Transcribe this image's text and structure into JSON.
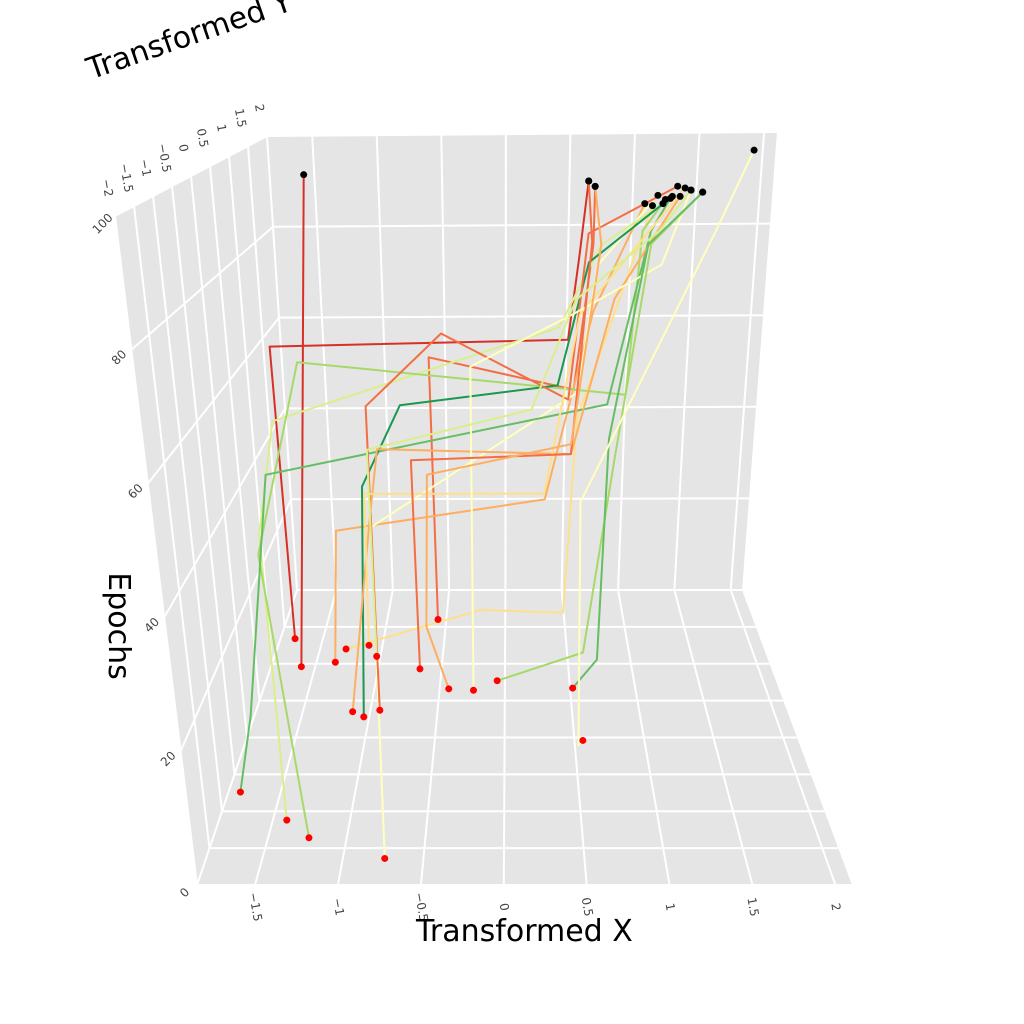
{
  "chart_data": {
    "type": "line3d",
    "xlabel": "Transformed X",
    "ylabel": "Transformed Y",
    "zlabel": "Epochs",
    "xlim": [
      -1.85,
      2.1
    ],
    "ylim": [
      -2,
      2
    ],
    "zlim": [
      0,
      100
    ],
    "x_ticks": [
      "−1.5",
      "−1",
      "−0.5",
      "0",
      "0.5",
      "1",
      "1.5",
      "2"
    ],
    "x_tick_values": [
      -1.5,
      -1,
      -0.5,
      0,
      0.5,
      1,
      1.5,
      2
    ],
    "y_ticks": [
      "−2",
      "−1.5",
      "−1",
      "−0.5",
      "0",
      "0.5",
      "1",
      "1.5",
      "2"
    ],
    "y_tick_values": [
      -2,
      -1.5,
      -1,
      -0.5,
      0,
      0.5,
      1,
      1.5,
      2
    ],
    "z_ticks": [
      "0",
      "20",
      "40",
      "60",
      "80",
      "100"
    ],
    "z_tick_values": [
      0,
      20,
      40,
      60,
      80,
      100
    ],
    "start_marker_color": "#ff0000",
    "end_marker_color": "#000000",
    "wall_color": "#e5e5e5",
    "series": [
      {
        "color": "#d73027",
        "points": [
          [
            -1.73,
            1.34,
            0
          ],
          [
            -1.75,
            1.3,
            60
          ],
          [
            0.45,
            1.2,
            62
          ],
          [
            0.5,
            1.0,
            80
          ],
          [
            0.45,
            -0.3,
            100
          ]
        ]
      },
      {
        "color": "#d73027",
        "points": [
          [
            -1.61,
            0.96,
            0
          ],
          [
            -1.2,
            0.05,
            100
          ]
        ]
      },
      {
        "color": "#f46d43",
        "points": [
          [
            -0.57,
            1.6,
            0
          ],
          [
            -0.6,
            1.6,
            55
          ],
          [
            0.5,
            1.2,
            52
          ],
          [
            0.55,
            0.5,
            85
          ],
          [
            0.47,
            -0.56,
            100
          ]
        ]
      },
      {
        "color": "#fdae61",
        "points": [
          [
            -1.35,
            1.02,
            0
          ],
          [
            -1.3,
            1.1,
            25
          ],
          [
            0.3,
            1.2,
            30
          ],
          [
            0.6,
            0.9,
            70
          ],
          [
            0.67,
            -1.4,
            100
          ]
        ]
      },
      {
        "color": "#fee08b",
        "points": [
          [
            -1.29,
            1.2,
            0
          ],
          [
            -0.2,
            1.4,
            5
          ],
          [
            0.45,
            1.0,
            10
          ],
          [
            0.5,
            0.8,
            50
          ],
          [
            0.7,
            -1.5,
            100
          ]
        ]
      },
      {
        "color": "#ffffbf",
        "points": [
          [
            -0.74,
            -1.64,
            0
          ],
          [
            -0.75,
            -1.5,
            50
          ],
          [
            0.5,
            0.8,
            55
          ],
          [
            0.6,
            0.7,
            80
          ],
          [
            0.77,
            -1.0,
            100
          ]
        ]
      },
      {
        "color": "#d9ef8b",
        "points": [
          [
            -1.41,
            -1.12,
            0
          ],
          [
            -1.45,
            -1.0,
            45
          ],
          [
            -1.4,
            -0.5,
            60
          ],
          [
            0.4,
            1.5,
            62
          ],
          [
            0.6,
            0.5,
            85
          ],
          [
            0.76,
            -1.4,
            100
          ]
        ]
      },
      {
        "color": "#a6d96a",
        "points": [
          [
            -1.24,
            -1.36,
            0
          ],
          [
            -1.5,
            -0.8,
            40
          ],
          [
            -1.6,
            1.5,
            55
          ],
          [
            0.9,
            1.3,
            50
          ],
          [
            0.8,
            0.0,
            90
          ],
          [
            0.79,
            -1.2,
            100
          ]
        ]
      },
      {
        "color": "#66bd63",
        "points": [
          [
            -1.77,
            -0.74,
            0
          ],
          [
            -1.7,
            -0.5,
            10
          ],
          [
            -1.6,
            0.2,
            45
          ],
          [
            0.8,
            1.6,
            45
          ],
          [
            0.85,
            0.0,
            90
          ],
          [
            0.82,
            -1.15,
            100
          ]
        ]
      },
      {
        "color": "#1a9850",
        "points": [
          [
            -1.04,
            0.28,
            0
          ],
          [
            -1.0,
            0.5,
            40
          ],
          [
            -0.8,
            1.3,
            48
          ],
          [
            0.4,
            1.5,
            50
          ],
          [
            0.55,
            0.8,
            80
          ],
          [
            0.84,
            -1.05,
            100
          ]
        ]
      },
      {
        "color": "#f46d43",
        "points": [
          [
            -0.93,
            0.37,
            0
          ],
          [
            -0.95,
            0.5,
            55
          ],
          [
            -0.5,
            1.6,
            60
          ],
          [
            0.5,
            1.7,
            45
          ],
          [
            0.55,
            0.9,
            85
          ],
          [
            0.92,
            -0.56,
            100
          ]
        ]
      },
      {
        "color": "#fdae61",
        "points": [
          [
            -1.13,
            0.35,
            0
          ],
          [
            -1.0,
            0.8,
            30
          ],
          [
            -1.0,
            1.4,
            38
          ],
          [
            0.5,
            1.3,
            38
          ],
          [
            0.7,
            0.5,
            75
          ],
          [
            0.88,
            -1.05,
            100
          ]
        ]
      },
      {
        "color": "#fee08b",
        "points": [
          [
            -1.11,
            1.25,
            0
          ],
          [
            -1.1,
            1.3,
            30
          ],
          [
            0.3,
            1.3,
            30
          ],
          [
            0.5,
            0.8,
            70
          ],
          [
            0.95,
            -0.65,
            100
          ]
        ]
      },
      {
        "color": "#ffffbf",
        "points": [
          [
            -0.24,
            0.64,
            0
          ],
          [
            -0.25,
            0.8,
            60
          ],
          [
            0.45,
            0.8,
            70
          ],
          [
            0.9,
            -0.2,
            85
          ],
          [
            0.97,
            -0.75,
            100
          ]
        ]
      },
      {
        "color": "#a6d96a",
        "points": [
          [
            -0.06,
            0.77,
            0
          ],
          [
            0.6,
            0.8,
            5
          ],
          [
            0.8,
            1.0,
            40
          ],
          [
            0.8,
            -0.5,
            90
          ],
          [
            1.02,
            -0.85,
            100
          ]
        ]
      },
      {
        "color": "#66bd63",
        "points": [
          [
            0.52,
            0.67,
            0
          ],
          [
            0.7,
            0.7,
            5
          ],
          [
            0.8,
            1.4,
            40
          ],
          [
            0.9,
            0.5,
            85
          ],
          [
            1.02,
            -0.85,
            100
          ]
        ]
      },
      {
        "color": "#ffffbf",
        "points": [
          [
            0.56,
            -0.04,
            0
          ],
          [
            0.5,
            -0.5,
            5
          ],
          [
            0.5,
            0.2,
            40
          ],
          [
            1.4,
            0.9,
            85
          ],
          [
            1.68,
            1.15,
            100
          ]
        ]
      },
      {
        "color": "#f46d43",
        "points": [
          [
            -0.67,
            0.93,
            0
          ],
          [
            -0.7,
            1.0,
            40
          ],
          [
            0.5,
            1.3,
            38
          ],
          [
            0.55,
            0.6,
            85
          ],
          [
            0.45,
            -0.3,
            100
          ]
        ]
      },
      {
        "color": "#fdae61",
        "points": [
          [
            -0.43,
            0.66,
            0
          ],
          [
            -0.6,
            0.8,
            10
          ],
          [
            -0.6,
            1.2,
            35
          ],
          [
            0.5,
            1.3,
            40
          ],
          [
            0.6,
            0.5,
            85
          ],
          [
            0.47,
            -0.56,
            100
          ]
        ]
      },
      {
        "color": "#d9ef8b",
        "points": [
          [
            -1.03,
            1.1,
            0
          ],
          [
            -1.05,
            1.2,
            40
          ],
          [
            0.2,
            1.5,
            45
          ],
          [
            0.5,
            1.2,
            70
          ],
          [
            0.9,
            0.0,
            90
          ],
          [
            0.97,
            -0.75,
            100
          ]
        ]
      }
    ]
  }
}
